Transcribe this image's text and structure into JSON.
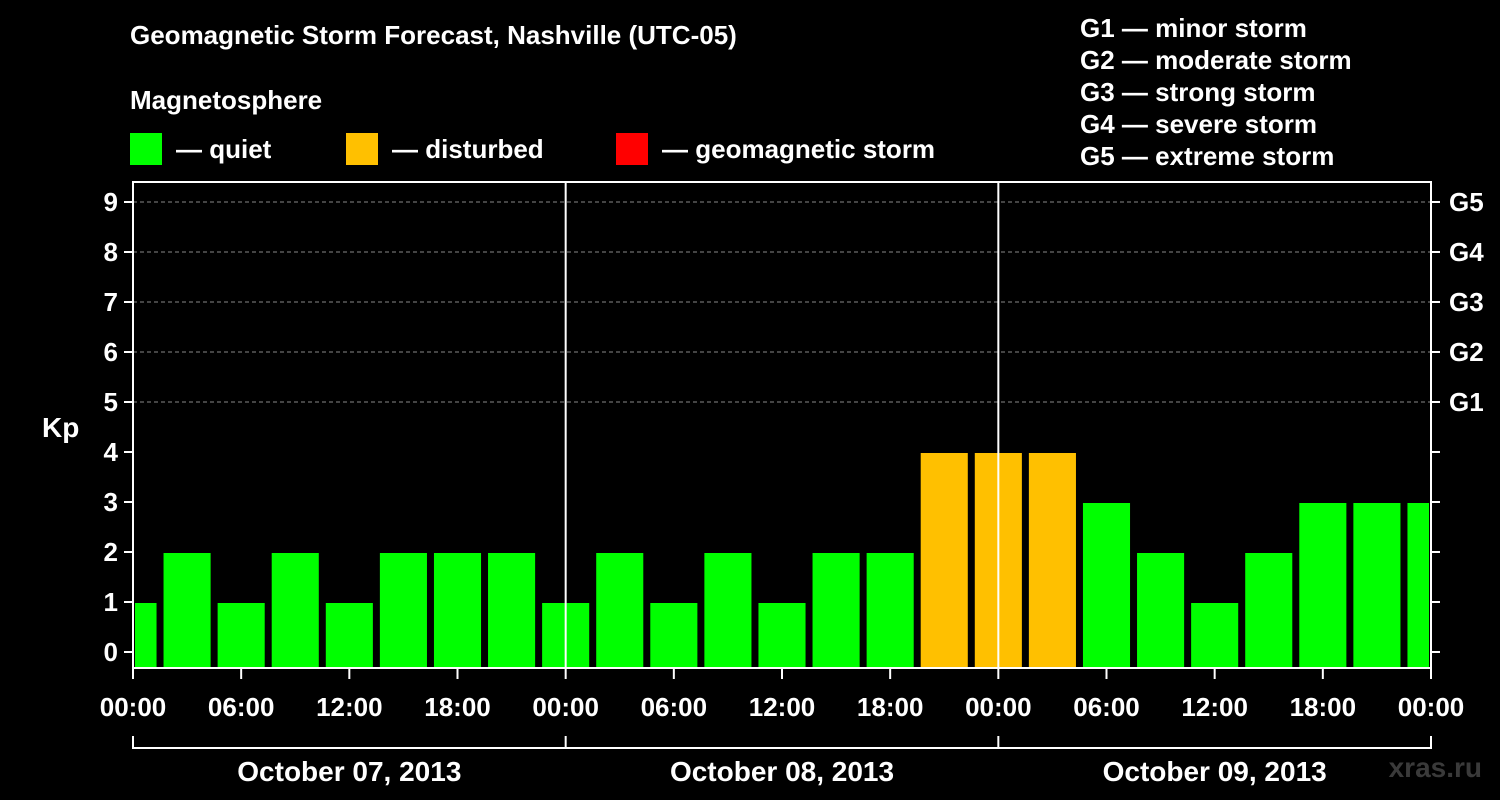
{
  "header": {
    "title": "Geomagnetic Storm Forecast, Nashville (UTC-05)",
    "magnetosphere_label": "Magnetosphere"
  },
  "legend": [
    {
      "label": "— quiet",
      "color": "#00ff00"
    },
    {
      "label": "— disturbed",
      "color": "#ffc000"
    },
    {
      "label": "— geomagnetic storm",
      "color": "#ff0000"
    }
  ],
  "storm_scale": [
    "G1 — minor storm",
    "G2 — moderate storm",
    "G3 — strong storm",
    "G4 — severe storm",
    "G5 — extreme storm"
  ],
  "watermark": "xras.ru",
  "chart_data": {
    "type": "bar",
    "title": "Geomagnetic Storm Forecast, Nashville (UTC-05)",
    "ylabel": "Kp",
    "ylim": [
      0,
      9
    ],
    "yticks": [
      "0",
      "1",
      "2",
      "3",
      "4",
      "5",
      "6",
      "7",
      "8",
      "9"
    ],
    "right_ticks": [
      {
        "kp": 5,
        "label": "G1"
      },
      {
        "kp": 6,
        "label": "G2"
      },
      {
        "kp": 7,
        "label": "G3"
      },
      {
        "kp": 8,
        "label": "G4"
      },
      {
        "kp": 9,
        "label": "G5"
      }
    ],
    "xticks": [
      "00:00",
      "06:00",
      "12:00",
      "18:00",
      "00:00",
      "06:00",
      "12:00",
      "18:00",
      "00:00",
      "06:00",
      "12:00",
      "18:00",
      "00:00"
    ],
    "days": [
      "October 07, 2013",
      "October 08, 2013",
      "October 09, 2013"
    ],
    "bar_interval_hours": 3,
    "x_range_hours": [
      0,
      72
    ],
    "values": [
      1,
      2,
      1,
      2,
      1,
      2,
      2,
      2,
      1,
      2,
      1,
      2,
      1,
      2,
      2,
      4,
      4,
      4,
      3,
      2,
      1,
      2,
      3,
      3,
      3
    ],
    "bar_colors": {
      "quiet": "#00ff00",
      "disturbed": "#ffc000",
      "storm": "#ff0000"
    },
    "grid": true,
    "legend_position": "top"
  }
}
